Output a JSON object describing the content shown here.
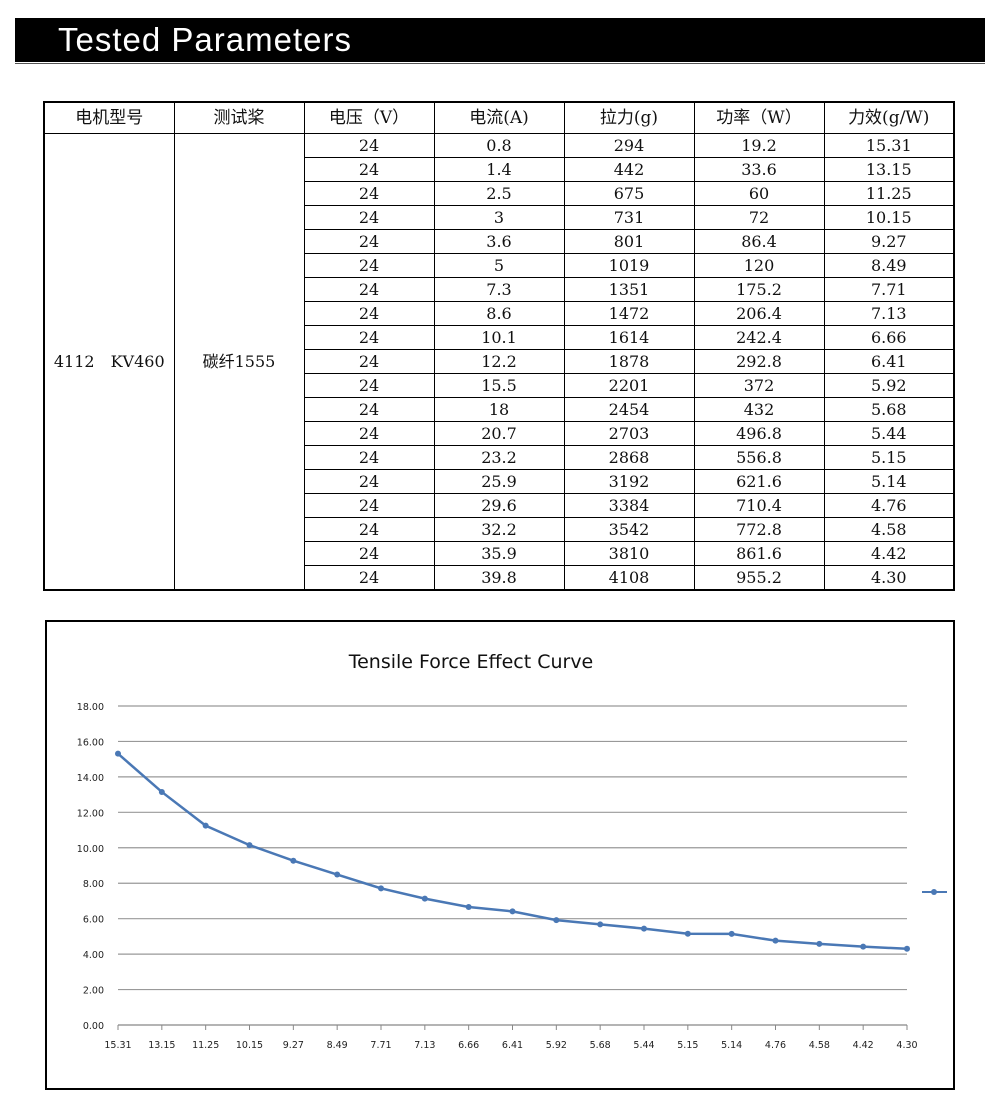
{
  "header": {
    "title": "Tested Parameters"
  },
  "table": {
    "columns": [
      "电机型号",
      "测试桨",
      "电压（V）",
      "电流(A)",
      "拉力(g)",
      "功率（W）",
      "力效(g/W)"
    ],
    "motor": "4112　KV460",
    "prop": "碳纤1555",
    "rows": [
      [
        "24",
        "0.8",
        "294",
        "19.2",
        "15.31"
      ],
      [
        "24",
        "1.4",
        "442",
        "33.6",
        "13.15"
      ],
      [
        "24",
        "2.5",
        "675",
        "60",
        "11.25"
      ],
      [
        "24",
        "3",
        "731",
        "72",
        "10.15"
      ],
      [
        "24",
        "3.6",
        "801",
        "86.4",
        "9.27"
      ],
      [
        "24",
        "5",
        "1019",
        "120",
        "8.49"
      ],
      [
        "24",
        "7.3",
        "1351",
        "175.2",
        "7.71"
      ],
      [
        "24",
        "8.6",
        "1472",
        "206.4",
        "7.13"
      ],
      [
        "24",
        "10.1",
        "1614",
        "242.4",
        "6.66"
      ],
      [
        "24",
        "12.2",
        "1878",
        "292.8",
        "6.41"
      ],
      [
        "24",
        "15.5",
        "2201",
        "372",
        "5.92"
      ],
      [
        "24",
        "18",
        "2454",
        "432",
        "5.68"
      ],
      [
        "24",
        "20.7",
        "2703",
        "496.8",
        "5.44"
      ],
      [
        "24",
        "23.2",
        "2868",
        "556.8",
        "5.15"
      ],
      [
        "24",
        "25.9",
        "3192",
        "621.6",
        "5.14"
      ],
      [
        "24",
        "29.6",
        "3384",
        "710.4",
        "4.76"
      ],
      [
        "24",
        "32.2",
        "3542",
        "772.8",
        "4.58"
      ],
      [
        "24",
        "35.9",
        "3810",
        "861.6",
        "4.42"
      ],
      [
        "24",
        "39.8",
        "4108",
        "955.2",
        "4.30"
      ]
    ]
  },
  "chart_data": {
    "type": "line",
    "title": "Tensile Force Effect Curve",
    "categories": [
      "15.31",
      "13.15",
      "11.25",
      "10.15",
      "9.27",
      "8.49",
      "7.71",
      "7.13",
      "6.66",
      "6.41",
      "5.92",
      "5.68",
      "5.44",
      "5.15",
      "5.14",
      "4.76",
      "4.58",
      "4.42",
      "4.30"
    ],
    "series": [
      {
        "name": "",
        "values": [
          15.31,
          13.15,
          11.25,
          10.15,
          9.27,
          8.49,
          7.71,
          7.13,
          6.66,
          6.41,
          5.92,
          5.68,
          5.44,
          5.15,
          5.14,
          4.76,
          4.58,
          4.42,
          4.3
        ]
      }
    ],
    "ylim": [
      0,
      18
    ],
    "yticks": [
      "0.00",
      "2.00",
      "4.00",
      "6.00",
      "8.00",
      "10.00",
      "12.00",
      "14.00",
      "16.00",
      "18.00"
    ],
    "grid": true,
    "legend": "right",
    "color": "#4a78b5"
  }
}
